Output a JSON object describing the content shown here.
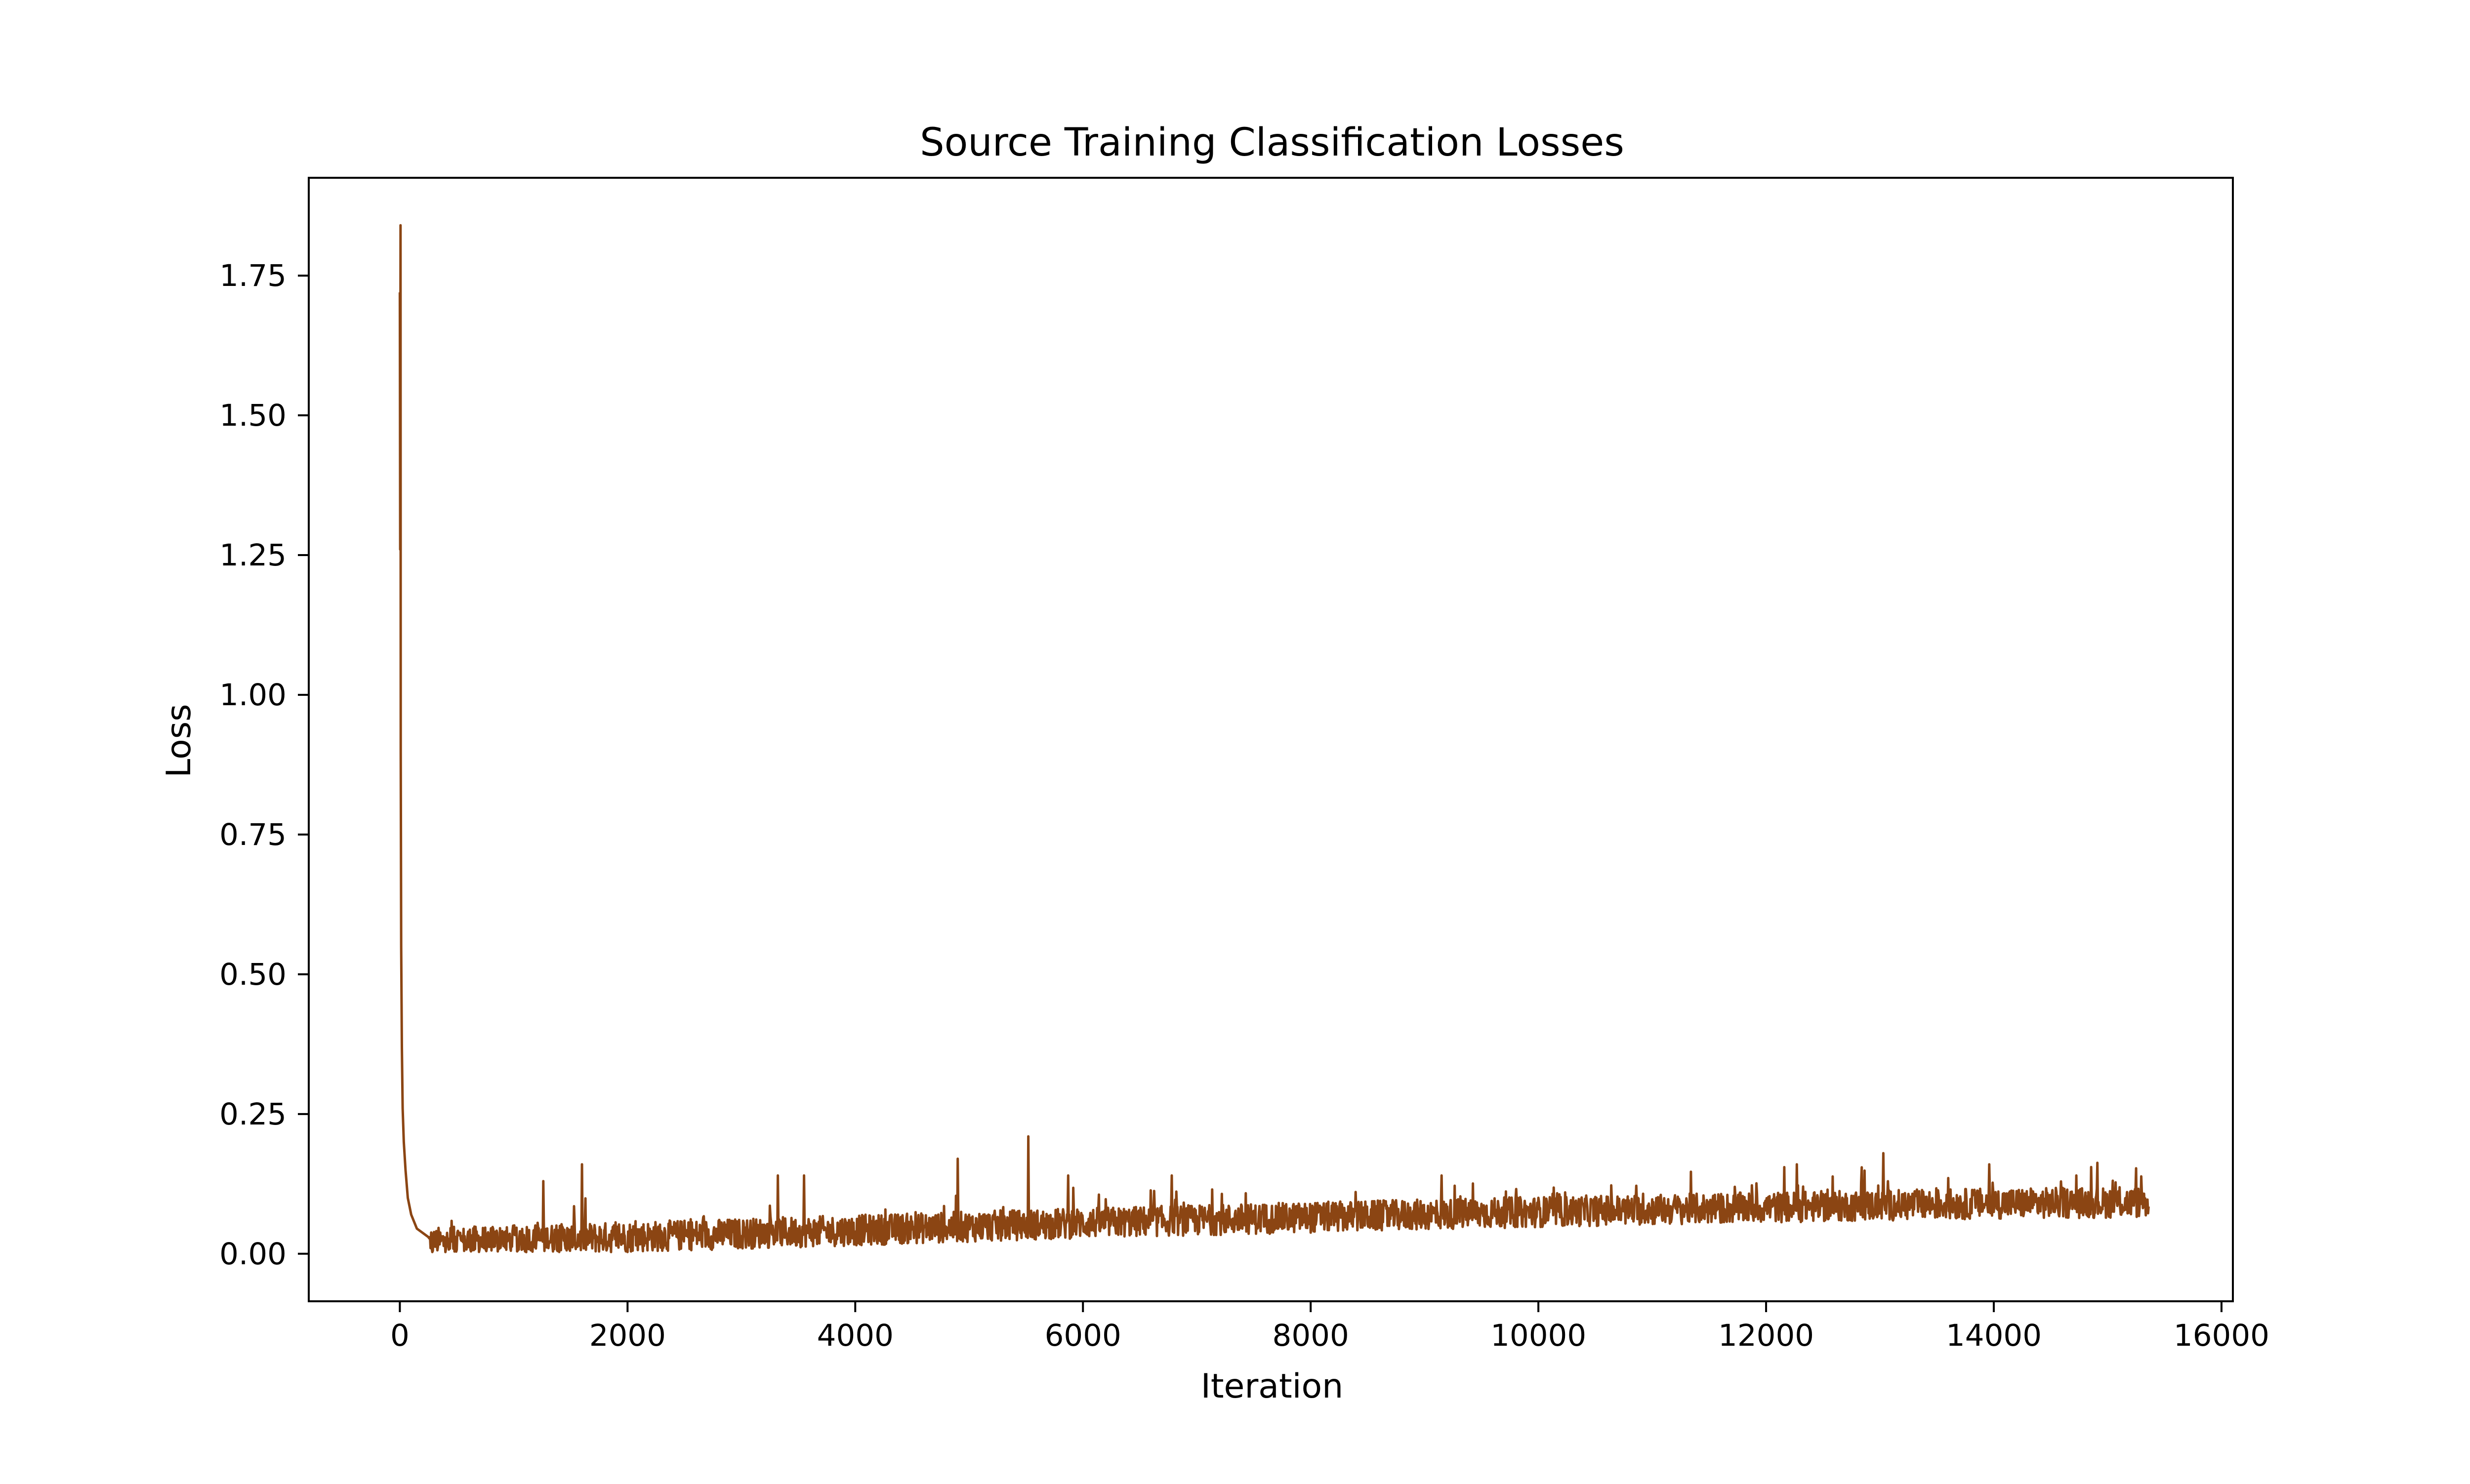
{
  "chart_data": {
    "type": "line",
    "title": "Source Training Classification Losses",
    "xlabel": "Iteration",
    "ylabel": "Loss",
    "xlim": [
      -800,
      16100
    ],
    "ylim": [
      -0.085,
      1.925
    ],
    "xticks": [
      0,
      2000,
      4000,
      6000,
      8000,
      10000,
      12000,
      14000,
      16000
    ],
    "xtick_labels": [
      "0",
      "2000",
      "4000",
      "6000",
      "8000",
      "10000",
      "12000",
      "14000",
      "16000"
    ],
    "yticks": [
      0.0,
      0.25,
      0.5,
      0.75,
      1.0,
      1.25,
      1.5,
      1.75
    ],
    "ytick_labels": [
      "0.00",
      "0.25",
      "0.50",
      "0.75",
      "1.00",
      "1.25",
      "1.50",
      "1.75"
    ],
    "grid": false,
    "series": [
      {
        "color": "#8B4513",
        "x_range": [
          0,
          15360
        ],
        "iterations": 15360,
        "initial_points": [
          [
            0,
            1.72
          ],
          [
            3,
            1.26
          ],
          [
            6,
            1.84
          ],
          [
            8,
            0.9
          ],
          [
            12,
            0.55
          ],
          [
            18,
            0.37
          ],
          [
            25,
            0.26
          ],
          [
            35,
            0.2
          ],
          [
            50,
            0.15
          ],
          [
            70,
            0.1
          ],
          [
            100,
            0.07
          ],
          [
            150,
            0.045
          ],
          [
            250,
            0.03
          ]
        ],
        "spikes": [
          [
            1600,
            0.16
          ],
          [
            1260,
            0.13
          ],
          [
            3320,
            0.14
          ],
          [
            3550,
            0.14
          ],
          [
            4900,
            0.17
          ],
          [
            5520,
            0.21
          ],
          [
            5870,
            0.14
          ],
          [
            6780,
            0.14
          ],
          [
            9150,
            0.14
          ],
          [
            12270,
            0.16
          ],
          [
            13030,
            0.18
          ],
          [
            13960,
            0.16
          ]
        ],
        "trend": [
          [
            300,
            0.02
          ],
          [
            2000,
            0.03
          ],
          [
            4000,
            0.042
          ],
          [
            6000,
            0.055
          ],
          [
            8000,
            0.065
          ],
          [
            10000,
            0.075
          ],
          [
            12000,
            0.083
          ],
          [
            14000,
            0.09
          ],
          [
            15360,
            0.092
          ]
        ]
      }
    ]
  }
}
